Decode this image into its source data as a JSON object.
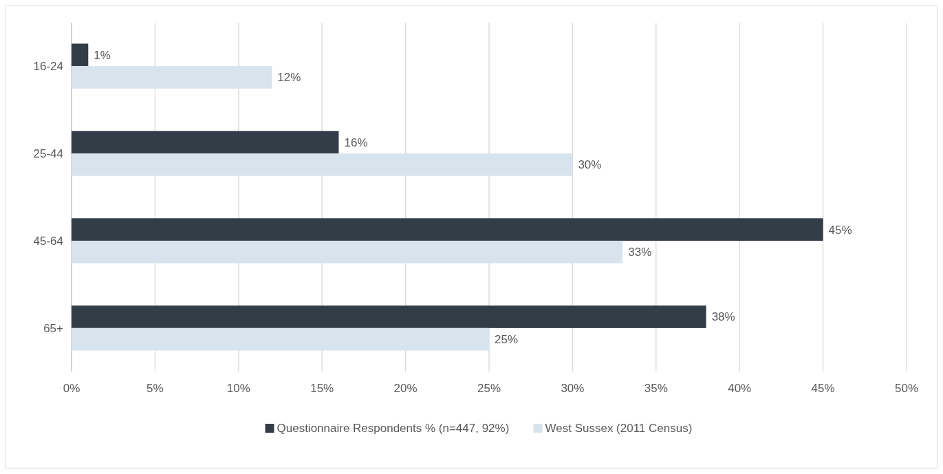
{
  "chart_data": {
    "type": "bar",
    "orientation": "horizontal",
    "categories": [
      "16-24",
      "25-44",
      "45-64",
      "65+"
    ],
    "series": [
      {
        "name": "Questionnaire Respondents % (n=447, 92%)",
        "color": "#333d48",
        "values": [
          1,
          16,
          45,
          38
        ],
        "value_labels": [
          "1%",
          "16%",
          "45%",
          "38%"
        ]
      },
      {
        "name": "West Sussex (2011 Census)",
        "color": "#d7e4ee",
        "values": [
          12,
          30,
          33,
          25
        ],
        "value_labels": [
          "12%",
          "30%",
          "33%",
          "25%"
        ]
      }
    ],
    "xlim": [
      0,
      50
    ],
    "xticks": [
      {
        "value": 0,
        "label": "0%"
      },
      {
        "value": 5,
        "label": "5%"
      },
      {
        "value": 10,
        "label": "10%"
      },
      {
        "value": 15,
        "label": "15%"
      },
      {
        "value": 20,
        "label": "20%"
      },
      {
        "value": 25,
        "label": "25%"
      },
      {
        "value": 30,
        "label": "30%"
      },
      {
        "value": 35,
        "label": "35%"
      },
      {
        "value": 40,
        "label": "40%"
      },
      {
        "value": 45,
        "label": "45%"
      },
      {
        "value": 50,
        "label": "50%"
      }
    ],
    "grid": "x",
    "legend": "bottom"
  }
}
